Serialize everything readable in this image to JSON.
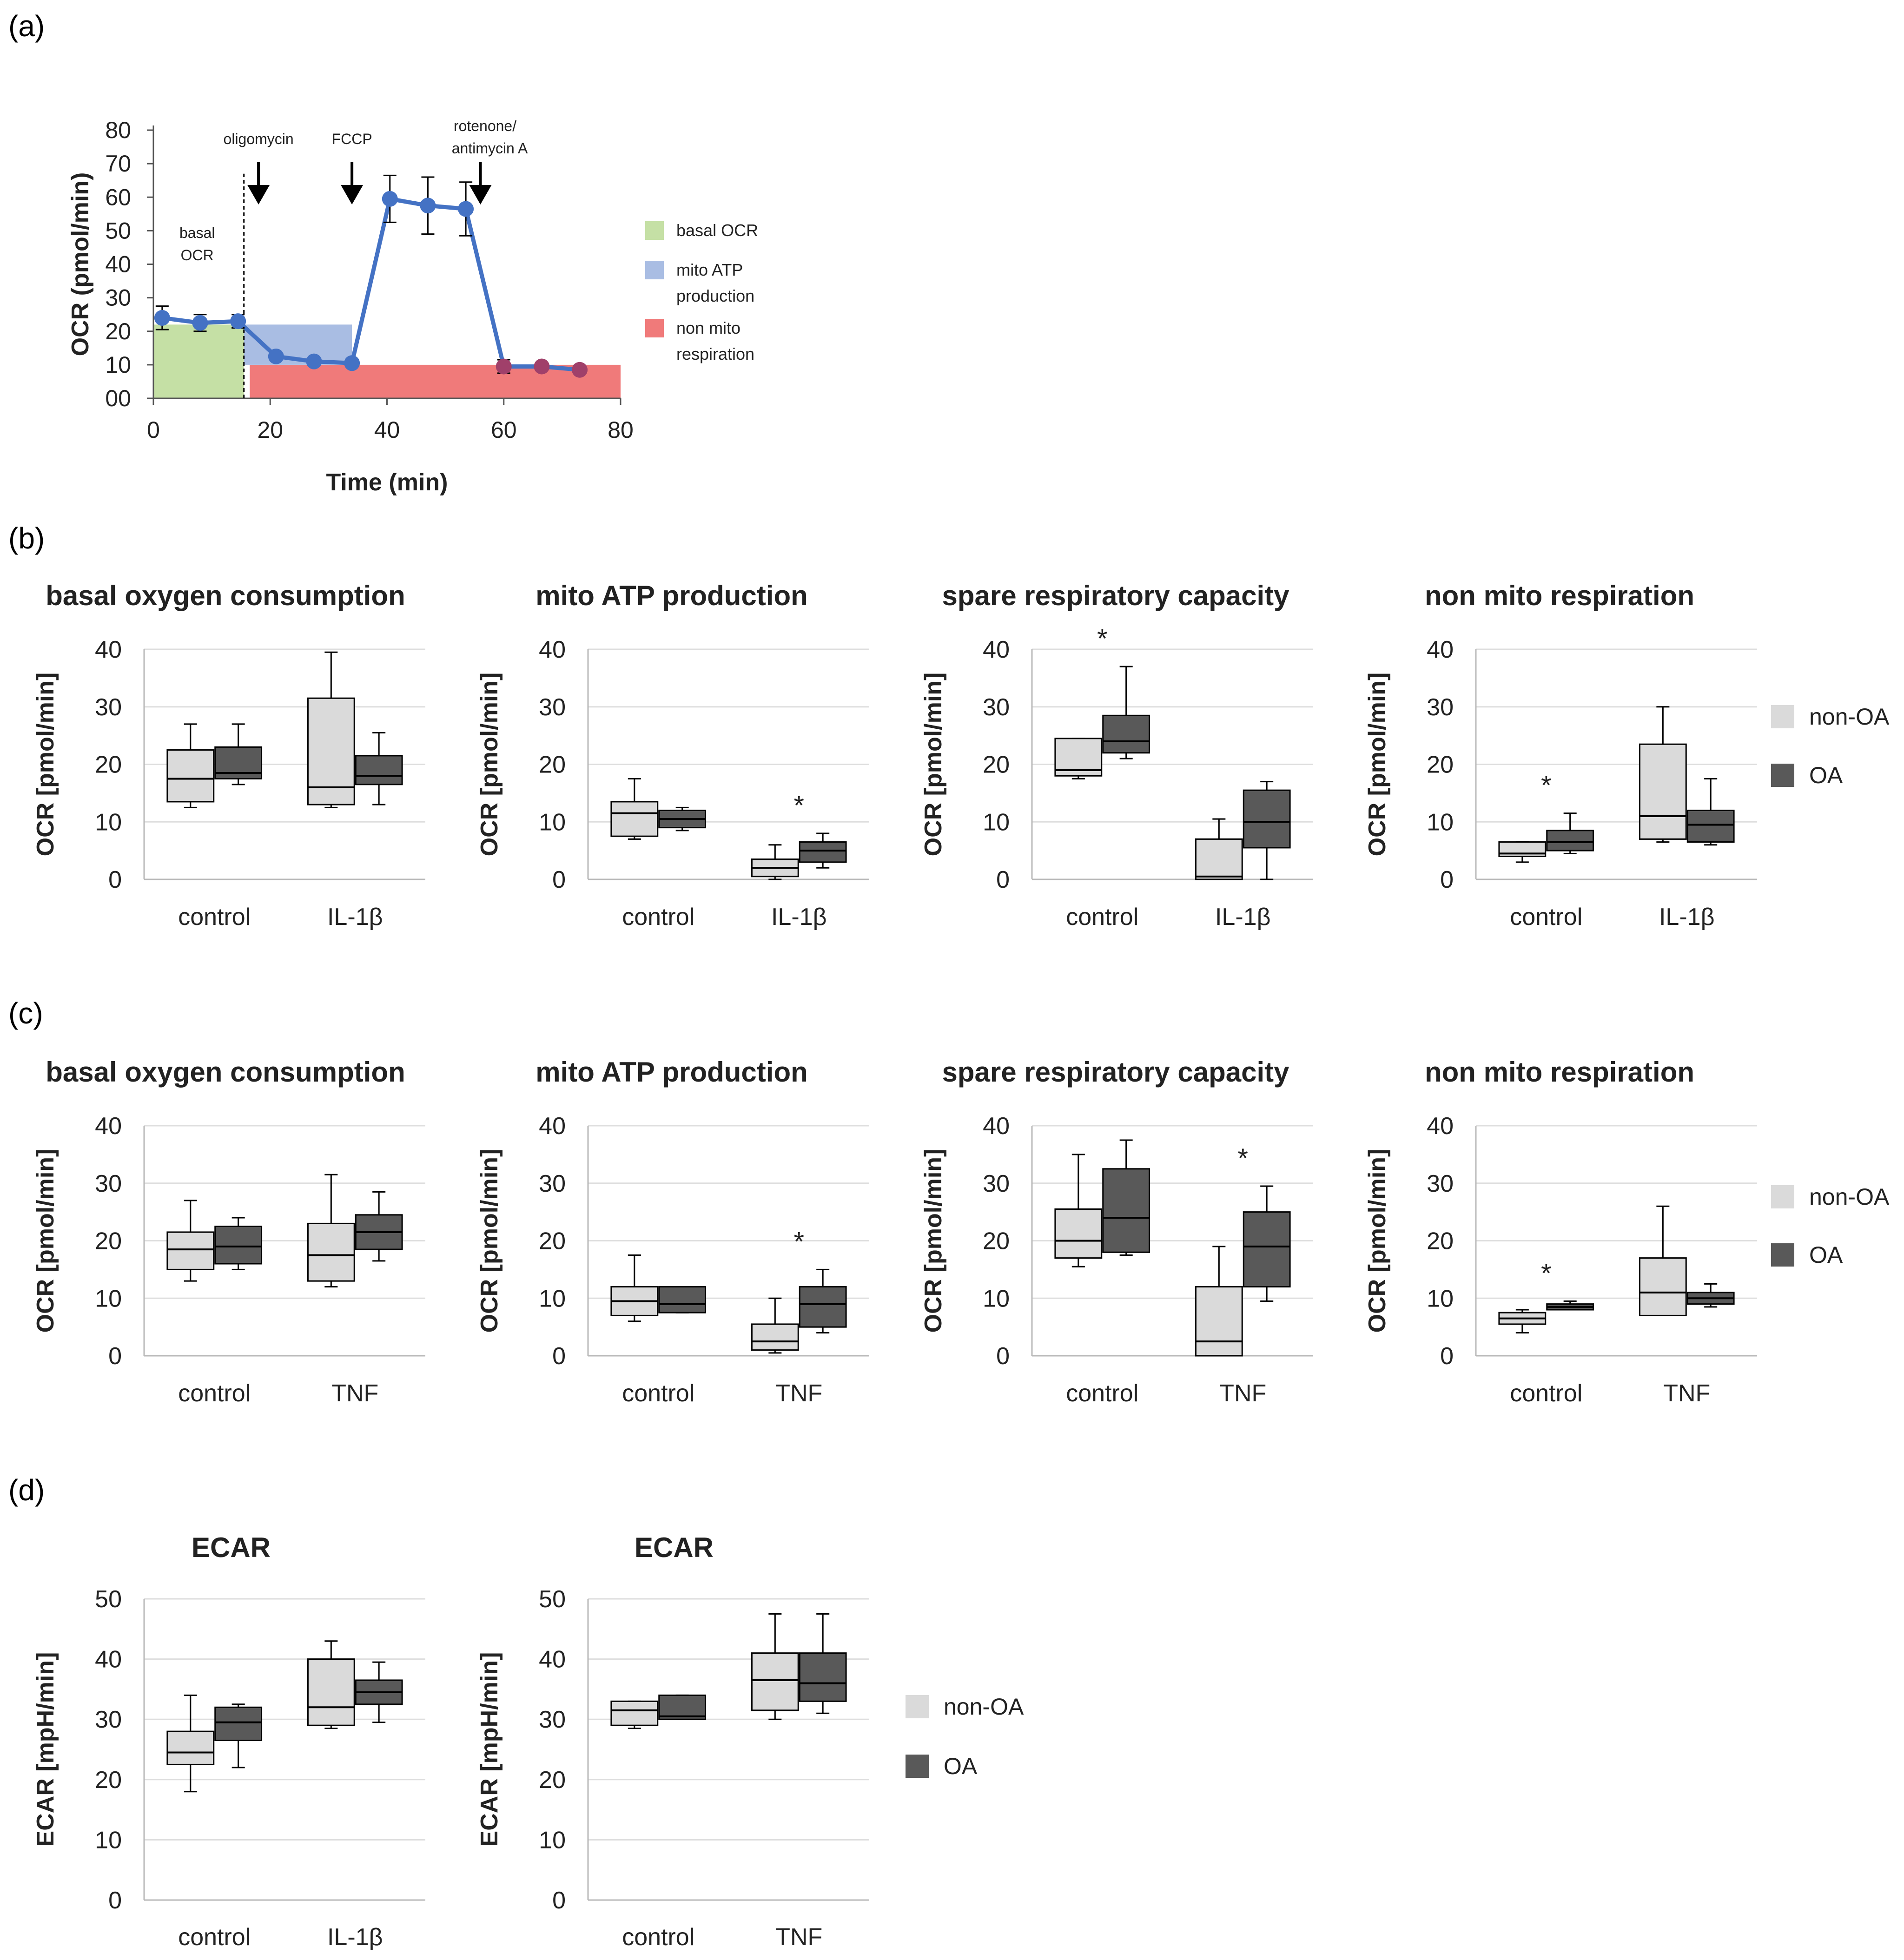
{
  "panel_labels": [
    "(a)",
    "(b)",
    "(c)",
    "(d)"
  ],
  "colors": {
    "non_oa": "#dadada",
    "oa": "#595959",
    "line": "#4472c4",
    "basal_fill": "#c5e0a5",
    "atp_fill": "#a9bde3",
    "nonmito_fill": "#f07a7a",
    "nonmito_line": "#a0406a"
  },
  "legend": {
    "non_oa": "non-OA",
    "oa": "OA"
  },
  "chart_data": [
    {
      "id": "a",
      "type": "line",
      "xlabel": "Time (min)",
      "ylabel": "OCR (pmol/min)",
      "xlim": [
        0,
        80
      ],
      "ylim": [
        0,
        80
      ],
      "xticks": [
        "0",
        "20",
        "40",
        "60",
        "80"
      ],
      "yticks": [
        "00",
        "10",
        "20",
        "30",
        "40",
        "50",
        "60",
        "70",
        "80"
      ],
      "series": [
        {
          "x": [
            1.5,
            8,
            14.5,
            21,
            27.5,
            34,
            40.5,
            47,
            53.5,
            60,
            66.5,
            73
          ],
          "y": [
            24,
            22.5,
            23,
            12.5,
            11,
            10.5,
            59.5,
            57.5,
            56.5,
            9.5,
            9.5,
            8.5
          ],
          "err": [
            3.5,
            2.5,
            2,
            1,
            1,
            1,
            7,
            8.5,
            8,
            2,
            1,
            1
          ]
        }
      ],
      "injections": [
        {
          "label": "oligomycin",
          "x": 18
        },
        {
          "label": "FCCP",
          "x": 34
        },
        {
          "label": "rotenone/",
          "label2": "antimycin A",
          "x": 56
        }
      ],
      "annotation": [
        "basal",
        "OCR"
      ],
      "regions": [
        {
          "name": "basal OCR",
          "x0": 0,
          "x1": 15.5,
          "y0": 0,
          "y1": 22
        },
        {
          "name": "mito ATP production",
          "x0": 15.5,
          "x1": 34,
          "y0": 10,
          "y1": 22
        },
        {
          "name": "non mito respiration",
          "x0": 16.5,
          "x1": 80,
          "y0": 0,
          "y1": 10
        }
      ],
      "legend": [
        {
          "label": "basal OCR"
        },
        {
          "label": "mito ATP",
          "label2": "production"
        },
        {
          "label": "non mito",
          "label2": "respiration"
        }
      ]
    },
    {
      "id": "b1",
      "type": "box",
      "title": "basal oxygen consumption",
      "ylabel": "OCR [pmol/min]",
      "ylim": [
        0,
        40
      ],
      "yticks": [
        "0",
        "10",
        "20",
        "30",
        "40"
      ],
      "categories": [
        "control",
        "IL-1β"
      ],
      "groups": [
        {
          "non_oa": {
            "min": 12.5,
            "q1": 13.5,
            "median": 17.5,
            "q3": 22.5,
            "max": 27
          },
          "oa": {
            "min": 16.5,
            "q1": 17.5,
            "median": 18.5,
            "q3": 23,
            "max": 27
          }
        },
        {
          "non_oa": {
            "min": 12.5,
            "q1": 13,
            "median": 16,
            "q3": 31.5,
            "max": 39.5
          },
          "oa": {
            "min": 13,
            "q1": 16.5,
            "median": 18,
            "q3": 21.5,
            "max": 25.5
          }
        }
      ],
      "stars": []
    },
    {
      "id": "b2",
      "type": "box",
      "title": "mito ATP production",
      "ylabel": "OCR [pmol/min]",
      "ylim": [
        0,
        40
      ],
      "yticks": [
        "0",
        "10",
        "20",
        "30",
        "40"
      ],
      "categories": [
        "control",
        "IL-1β"
      ],
      "groups": [
        {
          "non_oa": {
            "min": 7,
            "q1": 7.5,
            "median": 11.5,
            "q3": 13.5,
            "max": 17.5
          },
          "oa": {
            "min": 8.5,
            "q1": 9,
            "median": 10.5,
            "q3": 12,
            "max": 12.5
          }
        },
        {
          "non_oa": {
            "min": 0,
            "q1": 0.5,
            "median": 2,
            "q3": 3.5,
            "max": 6
          },
          "oa": {
            "min": 2,
            "q1": 3,
            "median": 5,
            "q3": 6.5,
            "max": 8
          }
        }
      ],
      "stars": [
        1
      ]
    },
    {
      "id": "b3",
      "type": "box",
      "title": "spare respiratory capacity",
      "ylabel": "OCR [pmol/min]",
      "ylim": [
        0,
        40
      ],
      "yticks": [
        "0",
        "10",
        "20",
        "30",
        "40"
      ],
      "categories": [
        "control",
        "IL-1β"
      ],
      "groups": [
        {
          "non_oa": {
            "min": 17.5,
            "q1": 18,
            "median": 19,
            "q3": 24.5,
            "max": 24.5
          },
          "oa": {
            "min": 21,
            "q1": 22,
            "median": 24,
            "q3": 28.5,
            "max": 37
          }
        },
        {
          "non_oa": {
            "min": 0,
            "q1": 0,
            "median": 0.5,
            "q3": 7,
            "max": 10.5
          },
          "oa": {
            "min": 0,
            "q1": 5.5,
            "median": 10,
            "q3": 15.5,
            "max": 17
          }
        }
      ],
      "stars": [
        0
      ]
    },
    {
      "id": "b4",
      "type": "box",
      "title": "non mito respiration",
      "ylabel": "OCR [pmol/min]",
      "ylim": [
        0,
        40
      ],
      "yticks": [
        "0",
        "10",
        "20",
        "30",
        "40"
      ],
      "categories": [
        "control",
        "IL-1β"
      ],
      "groups": [
        {
          "non_oa": {
            "min": 3,
            "q1": 4,
            "median": 4.5,
            "q3": 6.5,
            "max": 6.5
          },
          "oa": {
            "min": 4.5,
            "q1": 5,
            "median": 6.5,
            "q3": 8.5,
            "max": 11.5
          }
        },
        {
          "non_oa": {
            "min": 6.5,
            "q1": 7,
            "median": 11,
            "q3": 23.5,
            "max": 30
          },
          "oa": {
            "min": 6,
            "q1": 6.5,
            "median": 9.5,
            "q3": 12,
            "max": 17.5
          }
        }
      ],
      "stars": [
        0
      ]
    },
    {
      "id": "c1",
      "type": "box",
      "title": "basal oxygen consumption",
      "ylabel": "OCR [pmol/min]",
      "ylim": [
        0,
        40
      ],
      "yticks": [
        "0",
        "10",
        "20",
        "30",
        "40"
      ],
      "categories": [
        "control",
        "TNF"
      ],
      "groups": [
        {
          "non_oa": {
            "min": 13,
            "q1": 15,
            "median": 18.5,
            "q3": 21.5,
            "max": 27
          },
          "oa": {
            "min": 15,
            "q1": 16,
            "median": 19,
            "q3": 22.5,
            "max": 24
          }
        },
        {
          "non_oa": {
            "min": 12,
            "q1": 13,
            "median": 17.5,
            "q3": 23,
            "max": 31.5
          },
          "oa": {
            "min": 16.5,
            "q1": 18.5,
            "median": 21.5,
            "q3": 24.5,
            "max": 28.5
          }
        }
      ],
      "stars": []
    },
    {
      "id": "c2",
      "type": "box",
      "title": "mito ATP production",
      "ylabel": "OCR [pmol/min]",
      "ylim": [
        0,
        40
      ],
      "yticks": [
        "0",
        "10",
        "20",
        "30",
        "40"
      ],
      "categories": [
        "control",
        "TNF"
      ],
      "groups": [
        {
          "non_oa": {
            "min": 6,
            "q1": 7,
            "median": 9.5,
            "q3": 12,
            "max": 17.5
          },
          "oa": {
            "min": 7.5,
            "q1": 7.5,
            "median": 9,
            "q3": 12,
            "max": 12
          }
        },
        {
          "non_oa": {
            "min": 0.5,
            "q1": 1,
            "median": 2.5,
            "q3": 5.5,
            "max": 10
          },
          "oa": {
            "min": 4,
            "q1": 5,
            "median": 9,
            "q3": 12,
            "max": 15
          }
        }
      ],
      "stars": [
        1
      ]
    },
    {
      "id": "c3",
      "type": "box",
      "title": "spare respiratory capacity",
      "ylabel": "OCR [pmol/min]",
      "ylim": [
        0,
        40
      ],
      "yticks": [
        "0",
        "10",
        "20",
        "30",
        "40"
      ],
      "categories": [
        "control",
        "TNF"
      ],
      "groups": [
        {
          "non_oa": {
            "min": 15.5,
            "q1": 17,
            "median": 20,
            "q3": 25.5,
            "max": 35
          },
          "oa": {
            "min": 17.5,
            "q1": 18,
            "median": 24,
            "q3": 32.5,
            "max": 37.5
          }
        },
        {
          "non_oa": {
            "min": 0,
            "q1": 0,
            "median": 2.5,
            "q3": 12,
            "max": 19
          },
          "oa": {
            "min": 9.5,
            "q1": 12,
            "median": 19,
            "q3": 25,
            "max": 29.5
          }
        }
      ],
      "stars": [
        1
      ]
    },
    {
      "id": "c4",
      "type": "box",
      "title": "non mito respiration",
      "ylabel": "OCR [pmol/min]",
      "ylim": [
        0,
        40
      ],
      "yticks": [
        "0",
        "10",
        "20",
        "30",
        "40"
      ],
      "categories": [
        "control",
        "TNF"
      ],
      "groups": [
        {
          "non_oa": {
            "min": 4,
            "q1": 5.5,
            "median": 6.5,
            "q3": 7.5,
            "max": 8
          },
          "oa": {
            "min": 8,
            "q1": 8,
            "median": 8.5,
            "q3": 9,
            "max": 9.5
          }
        },
        {
          "non_oa": {
            "min": 7,
            "q1": 7,
            "median": 11,
            "q3": 17,
            "max": 26
          },
          "oa": {
            "min": 8.5,
            "q1": 9,
            "median": 10,
            "q3": 11,
            "max": 12.5
          }
        }
      ],
      "stars": [
        0
      ]
    },
    {
      "id": "d1",
      "type": "box",
      "title": "ECAR",
      "ylabel": "ECAR [mpH/min]",
      "ylim": [
        0,
        50
      ],
      "yticks": [
        "0",
        "10",
        "20",
        "30",
        "40",
        "50"
      ],
      "categories": [
        "control",
        "IL-1β"
      ],
      "groups": [
        {
          "non_oa": {
            "min": 18,
            "q1": 22.5,
            "median": 24.5,
            "q3": 28,
            "max": 34
          },
          "oa": {
            "min": 22,
            "q1": 26.5,
            "median": 29.5,
            "q3": 32,
            "max": 32.5
          }
        },
        {
          "non_oa": {
            "min": 28.5,
            "q1": 29,
            "median": 32,
            "q3": 40,
            "max": 43
          },
          "oa": {
            "min": 29.5,
            "q1": 32.5,
            "median": 34.5,
            "q3": 36.5,
            "max": 39.5
          }
        }
      ],
      "stars": []
    },
    {
      "id": "d2",
      "type": "box",
      "title": "ECAR",
      "ylabel": "ECAR [mpH/min]",
      "ylim": [
        0,
        50
      ],
      "yticks": [
        "0",
        "10",
        "20",
        "30",
        "40",
        "50"
      ],
      "categories": [
        "control",
        "TNF"
      ],
      "groups": [
        {
          "non_oa": {
            "min": 28.5,
            "q1": 29,
            "median": 31.5,
            "q3": 33,
            "max": 33
          },
          "oa": {
            "min": 30,
            "q1": 30,
            "median": 30.5,
            "q3": 34,
            "max": 34
          }
        },
        {
          "non_oa": {
            "min": 30,
            "q1": 31.5,
            "median": 36.5,
            "q3": 41,
            "max": 47.5
          },
          "oa": {
            "min": 31,
            "q1": 33,
            "median": 36,
            "q3": 41,
            "max": 47.5
          }
        }
      ],
      "stars": []
    }
  ]
}
